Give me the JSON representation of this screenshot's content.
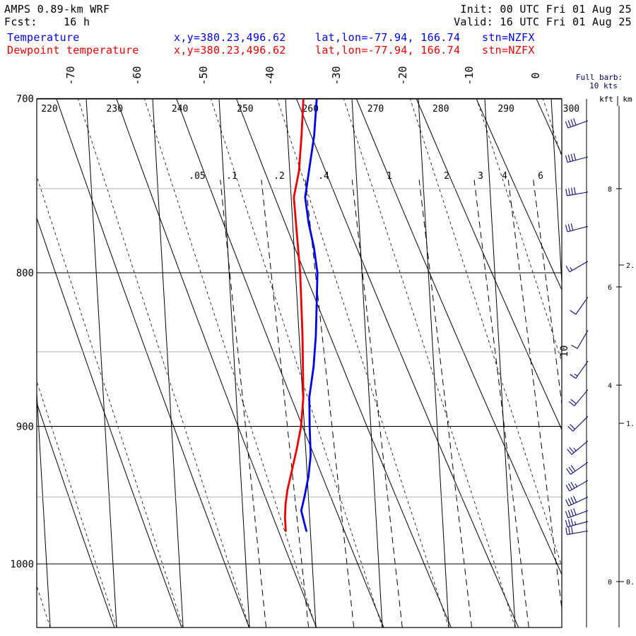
{
  "header": {
    "model": "AMPS 0.89-km WRF",
    "init": "Init: 00 UTC Fri 01 Aug 25",
    "fcst": "Fcst:    16 h",
    "valid": "Valid: 16 UTC Fri 01 Aug 25",
    "legend": [
      {
        "label": "Temperature",
        "xy": "x,y=380.23,496.62",
        "latlon": "lat,lon=-77.94, 166.74",
        "stn": "stn=NZFX",
        "color": "#0000ee"
      },
      {
        "label": "Dewpoint temperature",
        "xy": "x,y=380.23,496.62",
        "latlon": "lat,lon=-77.94, 166.74",
        "stn": "stn=NZFX",
        "color": "#ee0000"
      }
    ]
  },
  "barb_note": {
    "line1": "Full barb:",
    "line2": "10 kts"
  },
  "axis_units": {
    "kft": "kft",
    "km": "km"
  },
  "chart_data": {
    "type": "line",
    "title": "",
    "ylabel": "",
    "pressure_levels": [
      700,
      800,
      900,
      1000
    ],
    "pressure_gridlines_minor": [
      750,
      850,
      950
    ],
    "ylim_hpa": [
      700,
      1040
    ],
    "temperature_ticks_c": [
      -70,
      -60,
      -50,
      -40,
      -30,
      -20,
      -10,
      0
    ],
    "potential_temperature_labels_k": [
      220,
      230,
      240,
      250,
      260,
      270,
      280,
      290,
      300
    ],
    "mixing_ratio_labels": [
      ".05",
      ".1",
      ".2",
      ".4",
      "1",
      "2",
      "3",
      "4",
      "6"
    ],
    "wetadiabat_label": "10",
    "kft_ticks": [
      0,
      4,
      6,
      8
    ],
    "km_ticks": [
      0,
      1,
      2
    ],
    "series": [
      {
        "name": "Temperature",
        "color": "#0000ee",
        "points": [
          [
            700,
            -35.3
          ],
          [
            720,
            -36.0
          ],
          [
            740,
            -37.1
          ],
          [
            755,
            -37.9
          ],
          [
            770,
            -37.6
          ],
          [
            785,
            -37.0
          ],
          [
            800,
            -36.7
          ],
          [
            820,
            -37.1
          ],
          [
            840,
            -37.5
          ],
          [
            860,
            -38.1
          ],
          [
            880,
            -39.0
          ],
          [
            900,
            -39.2
          ],
          [
            920,
            -39.3
          ],
          [
            935,
            -39.8
          ],
          [
            950,
            -40.6
          ],
          [
            960,
            -41.2
          ],
          [
            970,
            -40.8
          ],
          [
            975,
            -40.6
          ]
        ]
      },
      {
        "name": "Dewpoint temperature",
        "color": "#ee0000",
        "points": [
          [
            700,
            -37.3
          ],
          [
            720,
            -37.9
          ],
          [
            740,
            -38.6
          ],
          [
            755,
            -39.6
          ],
          [
            770,
            -39.5
          ],
          [
            785,
            -39.4
          ],
          [
            800,
            -39.3
          ],
          [
            820,
            -39.4
          ],
          [
            840,
            -39.5
          ],
          [
            860,
            -39.7
          ],
          [
            880,
            -39.9
          ],
          [
            900,
            -40.5
          ],
          [
            915,
            -41.3
          ],
          [
            930,
            -42.2
          ],
          [
            945,
            -43.1
          ],
          [
            955,
            -43.5
          ],
          [
            965,
            -43.7
          ],
          [
            975,
            -43.7
          ]
        ]
      }
    ],
    "wind_barbs": [
      {
        "hpa": 712,
        "dir_deg": 250,
        "kts": 40
      },
      {
        "hpa": 732,
        "dir_deg": 255,
        "kts": 40
      },
      {
        "hpa": 752,
        "dir_deg": 260,
        "kts": 40
      },
      {
        "hpa": 772,
        "dir_deg": 255,
        "kts": 30
      },
      {
        "hpa": 793,
        "dir_deg": 240,
        "kts": 15
      },
      {
        "hpa": 815,
        "dir_deg": 215,
        "kts": 10
      },
      {
        "hpa": 836,
        "dir_deg": 210,
        "kts": 10
      },
      {
        "hpa": 856,
        "dir_deg": 215,
        "kts": 15
      },
      {
        "hpa": 875,
        "dir_deg": 220,
        "kts": 20
      },
      {
        "hpa": 893,
        "dir_deg": 225,
        "kts": 20
      },
      {
        "hpa": 910,
        "dir_deg": 230,
        "kts": 25
      },
      {
        "hpa": 925,
        "dir_deg": 235,
        "kts": 30
      },
      {
        "hpa": 938,
        "dir_deg": 240,
        "kts": 35
      },
      {
        "hpa": 950,
        "dir_deg": 245,
        "kts": 40
      },
      {
        "hpa": 960,
        "dir_deg": 250,
        "kts": 40
      },
      {
        "hpa": 968,
        "dir_deg": 255,
        "kts": 35
      },
      {
        "hpa": 975,
        "dir_deg": 260,
        "kts": 30
      }
    ]
  }
}
